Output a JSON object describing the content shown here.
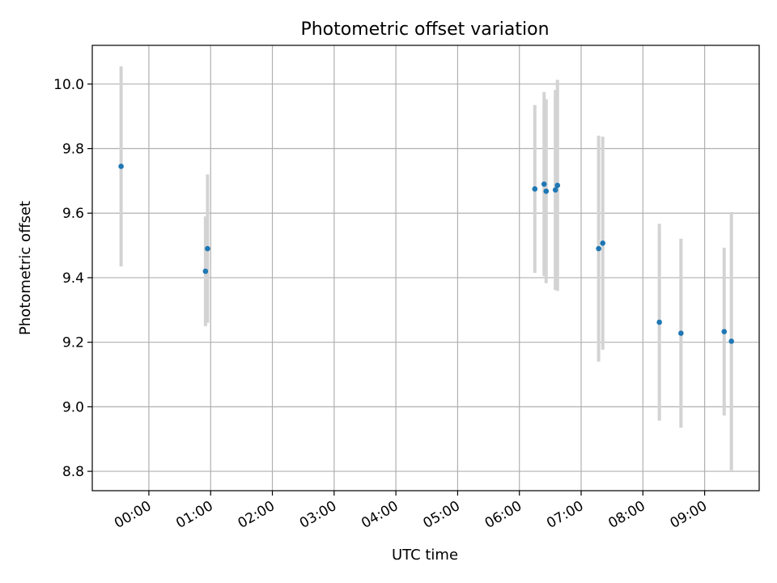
{
  "chart_data": {
    "type": "scatter",
    "title": "Photometric offset variation",
    "xlabel": "UTC time",
    "ylabel": "Photometric offset",
    "x_type": "time",
    "xlim": [
      "-00:55",
      "09:53"
    ],
    "ylim": [
      8.74,
      10.12
    ],
    "x_ticks": [
      "00:00",
      "01:00",
      "02:00",
      "03:00",
      "04:00",
      "05:00",
      "06:00",
      "07:00",
      "08:00",
      "09:00"
    ],
    "y_ticks": [
      8.8,
      9.0,
      9.2,
      9.4,
      9.6,
      9.8,
      10.0
    ],
    "y_tick_labels": [
      "8.8",
      "9.0",
      "9.2",
      "9.4",
      "9.6",
      "9.8",
      "10.0"
    ],
    "grid": true,
    "colors": {
      "marker": "#1f77b4",
      "errorbar": "#d3d3d3",
      "grid": "#b0b0b0"
    },
    "points": [
      {
        "x": "-00:27",
        "y": 9.745,
        "err": 0.31
      },
      {
        "x": "00:55",
        "y": 9.42,
        "err": 0.17
      },
      {
        "x": "00:57",
        "y": 9.49,
        "err": 0.23
      },
      {
        "x": "06:15",
        "y": 9.675,
        "err": 0.26
      },
      {
        "x": "06:24",
        "y": 9.69,
        "err": 0.285
      },
      {
        "x": "06:26",
        "y": 9.668,
        "err": 0.285
      },
      {
        "x": "06:35",
        "y": 9.672,
        "err": 0.31
      },
      {
        "x": "06:37",
        "y": 9.686,
        "err": 0.327
      },
      {
        "x": "07:17",
        "y": 9.49,
        "err": 0.35
      },
      {
        "x": "07:21",
        "y": 9.507,
        "err": 0.33
      },
      {
        "x": "08:16",
        "y": 9.262,
        "err": 0.305
      },
      {
        "x": "08:37",
        "y": 9.228,
        "err": 0.293
      },
      {
        "x": "09:19",
        "y": 9.233,
        "err": 0.26
      },
      {
        "x": "09:26",
        "y": 9.203,
        "err": 0.4
      }
    ]
  }
}
